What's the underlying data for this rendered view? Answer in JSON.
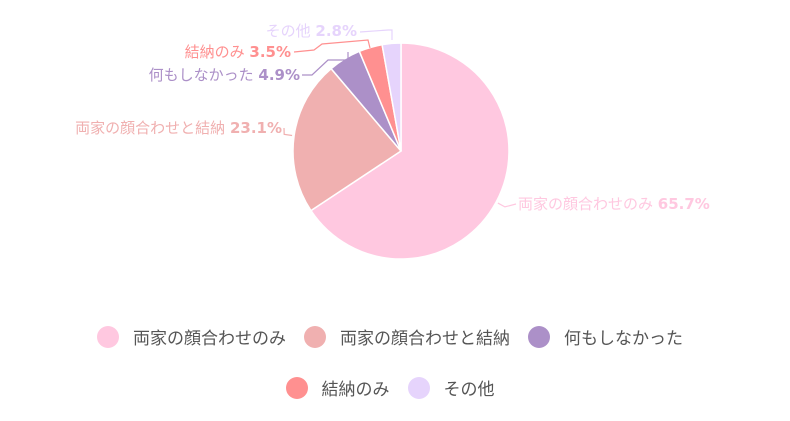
{
  "chart_data": {
    "type": "pie",
    "title": "",
    "start_angle_deg": 0,
    "direction": "clockwise",
    "categories": [
      "両家の顔合わせのみ",
      "両家の顔合わせと結納",
      "何もしなかった",
      "結納のみ",
      "その他"
    ],
    "values": [
      65.7,
      23.1,
      4.9,
      3.5,
      2.8
    ],
    "unit": "%",
    "colors": [
      "#ffc8e0",
      "#f0b0b0",
      "#ac90c8",
      "#ff9090",
      "#e6d4fc"
    ],
    "data_labels": [
      {
        "name": "両家の顔合わせのみ",
        "value": "65.7%"
      },
      {
        "name": "両家の顔合わせと結納",
        "value": "23.1%"
      },
      {
        "name": "何もしなかった",
        "value": "4.9%"
      },
      {
        "name": "結納のみ",
        "value": "3.5%"
      },
      {
        "name": "その他",
        "value": "2.8%"
      }
    ],
    "legend_position": "bottom"
  },
  "legend": {
    "items": [
      {
        "label": "両家の顔合わせのみ",
        "color": "#ffc8e0"
      },
      {
        "label": "両家の顔合わせと結納",
        "color": "#f0b0b0"
      },
      {
        "label": "何もしなかった",
        "color": "#ac90c8"
      },
      {
        "label": "結納のみ",
        "color": "#ff9090"
      },
      {
        "label": "その他",
        "color": "#e6d4fc"
      }
    ]
  }
}
